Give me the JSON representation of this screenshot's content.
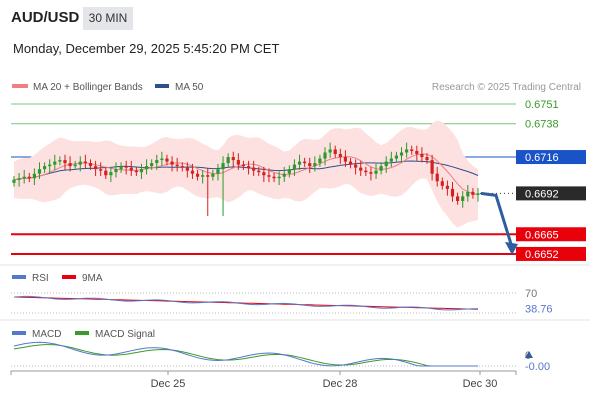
{
  "header": {
    "symbol": "AUD/USD",
    "timeframe": "30 MIN",
    "datetime": "Monday, December 29, 2025 5:45:20 PM CET"
  },
  "legend": {
    "ma20": "MA 20 + Bollinger Bands",
    "ma50": "MA 50",
    "credit": "Research © 2025 Trading Central",
    "rsi": "RSI",
    "rsi_ma": "9MA",
    "macd": "MACD",
    "macd_signal": "MACD Signal"
  },
  "colors": {
    "candle_up": "#2a9a2a",
    "candle_down": "#d42020",
    "ma20": "#f08080",
    "ma50": "#2f4f8f",
    "bands_fill": "#fde0e0",
    "resistance_green": "#7cc47c",
    "pivot_blue": "#1a53c8",
    "support_red": "#e8000b",
    "current_price_bg": "#2a2a2a",
    "arrow": "#2f5e9e",
    "rsi_line": "#5577cc",
    "rsi_ma_line": "#e8000b",
    "macd_line": "#5577cc",
    "macd_signal_line": "#3a9a2a"
  },
  "chart_data": [
    {
      "type": "candlestick",
      "x_labels": [
        "Dec 25",
        "Dec 28",
        "Dec 30"
      ],
      "ylim": [
        0.6648,
        0.6755
      ],
      "levels": [
        {
          "label": "0.6751",
          "value": 0.6751,
          "role": "resistance"
        },
        {
          "label": "0.6738",
          "value": 0.6738,
          "role": "resistance"
        },
        {
          "label": "0.6716",
          "value": 0.6716,
          "role": "pivot"
        },
        {
          "label": "0.6692",
          "value": 0.6692,
          "role": "current"
        },
        {
          "label": "0.6665",
          "value": 0.6665,
          "role": "support"
        },
        {
          "label": "0.6652",
          "value": 0.6652,
          "role": "support"
        }
      ],
      "current_price": 0.6692,
      "arrow": {
        "from": 0.6692,
        "to": 0.6652,
        "direction": "down"
      },
      "candle_shape": [
        0.6701,
        0.6702,
        0.6703,
        0.6702,
        0.6705,
        0.6708,
        0.671,
        0.6711,
        0.6713,
        0.6714,
        0.6712,
        0.671,
        0.6711,
        0.6713,
        0.6712,
        0.671,
        0.6708,
        0.6707,
        0.6704,
        0.6706,
        0.6708,
        0.671,
        0.6709,
        0.6707,
        0.6706,
        0.6708,
        0.671,
        0.6712,
        0.6714,
        0.6715,
        0.6713,
        0.6711,
        0.671,
        0.6709,
        0.6707,
        0.6705,
        0.6703,
        0.6704,
        0.6703,
        0.6705,
        0.6708,
        0.6712,
        0.6716,
        0.6714,
        0.6711,
        0.671,
        0.6709,
        0.6707,
        0.6706,
        0.6704,
        0.6703,
        0.6702,
        0.6703,
        0.6705,
        0.6708,
        0.6711,
        0.6713,
        0.6712,
        0.671,
        0.6712,
        0.6715,
        0.6719,
        0.6721,
        0.6718,
        0.6716,
        0.6713,
        0.6711,
        0.6709,
        0.6707,
        0.6706,
        0.6705,
        0.6707,
        0.671,
        0.6713,
        0.6715,
        0.6717,
        0.6719,
        0.6721,
        0.672,
        0.6718,
        0.6716,
        0.6714,
        0.6705,
        0.67,
        0.6697,
        0.6695,
        0.669,
        0.6687,
        0.669,
        0.6693,
        0.6691,
        0.6692
      ],
      "big_wicks": [
        {
          "index": 38,
          "low": 0.6677
        },
        {
          "index": 41,
          "low": 0.6677
        }
      ]
    },
    {
      "type": "line",
      "name": "RSI",
      "levels": [
        {
          "label": "70",
          "value": 70
        }
      ],
      "last_value_label": "38.76",
      "last_value": 38.76
    },
    {
      "type": "line",
      "name": "MACD",
      "levels": [
        {
          "label": "0",
          "value": 0
        }
      ],
      "last_value_label": "-0.00",
      "last_value": -0.0
    }
  ]
}
